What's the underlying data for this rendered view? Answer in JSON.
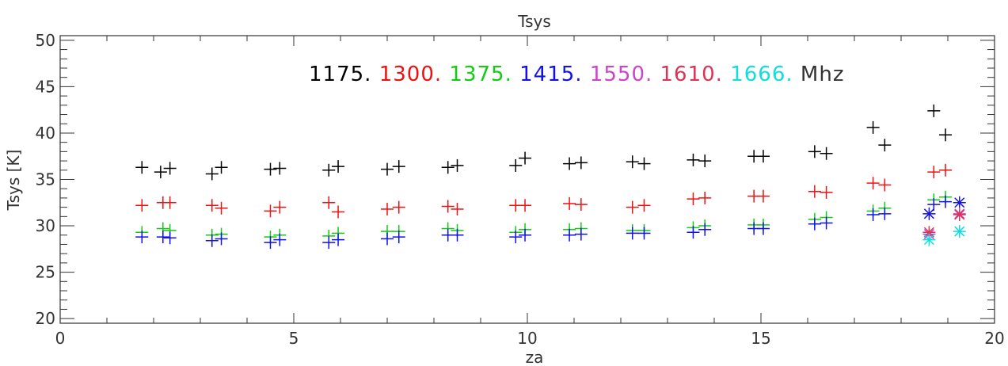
{
  "chart_data": {
    "type": "scatter",
    "title": "Tsys",
    "xlabel": "za",
    "ylabel": "Tsys [K]",
    "xlim": [
      0,
      20
    ],
    "ylim": [
      19.5,
      50.5
    ],
    "x_ticks": [
      0,
      5,
      10,
      15,
      20
    ],
    "x_tick_labels": [
      "0",
      "5",
      "10",
      "15",
      "20"
    ],
    "y_ticks": [
      20,
      25,
      30,
      35,
      40,
      45,
      50
    ],
    "y_tick_labels": [
      "20",
      "25",
      "30",
      "35",
      "40",
      "45",
      "50"
    ],
    "grid": false,
    "legend": {
      "placement": "top-center",
      "unit": "Mhz",
      "entries": [
        {
          "label": "1175.",
          "color": "#000000"
        },
        {
          "label": "1300.",
          "color": "#ee1111"
        },
        {
          "label": "1375.",
          "color": "#11cc11"
        },
        {
          "label": "1415.",
          "color": "#1111ee"
        },
        {
          "label": "1550.",
          "color": "#cc44cc"
        },
        {
          "label": "1610.",
          "color": "#dd3355"
        },
        {
          "label": "1666.",
          "color": "#11dddd"
        }
      ]
    },
    "series": [
      {
        "name": "1175.",
        "color": "#000000",
        "marker": "plus",
        "points": [
          [
            1.75,
            36.3
          ],
          [
            2.15,
            35.8
          ],
          [
            2.35,
            36.2
          ],
          [
            3.25,
            35.6
          ],
          [
            3.45,
            36.3
          ],
          [
            4.5,
            36.1
          ],
          [
            4.7,
            36.2
          ],
          [
            5.75,
            36.0
          ],
          [
            5.95,
            36.4
          ],
          [
            7.0,
            36.1
          ],
          [
            7.25,
            36.4
          ],
          [
            8.3,
            36.3
          ],
          [
            8.5,
            36.5
          ],
          [
            9.75,
            36.5
          ],
          [
            9.95,
            37.3
          ],
          [
            10.9,
            36.7
          ],
          [
            11.15,
            36.8
          ],
          [
            12.25,
            36.9
          ],
          [
            12.5,
            36.7
          ],
          [
            13.55,
            37.1
          ],
          [
            13.8,
            37.0
          ],
          [
            14.85,
            37.5
          ],
          [
            15.05,
            37.5
          ],
          [
            16.15,
            38.0
          ],
          [
            16.4,
            37.8
          ],
          [
            17.4,
            40.6
          ],
          [
            17.65,
            38.7
          ],
          [
            18.7,
            42.4
          ],
          [
            18.95,
            39.8
          ]
        ]
      },
      {
        "name": "1300.",
        "color": "#ee1111",
        "marker": "plus",
        "points": [
          [
            1.75,
            32.2
          ],
          [
            2.2,
            32.5
          ],
          [
            2.35,
            32.5
          ],
          [
            3.25,
            32.2
          ],
          [
            3.45,
            31.9
          ],
          [
            4.5,
            31.6
          ],
          [
            4.7,
            32.0
          ],
          [
            5.75,
            32.5
          ],
          [
            5.95,
            31.5
          ],
          [
            7.0,
            31.8
          ],
          [
            7.25,
            32.0
          ],
          [
            8.3,
            32.1
          ],
          [
            8.5,
            31.8
          ],
          [
            9.75,
            32.2
          ],
          [
            9.95,
            32.2
          ],
          [
            10.9,
            32.4
          ],
          [
            11.15,
            32.3
          ],
          [
            12.25,
            32.0
          ],
          [
            12.5,
            32.2
          ],
          [
            13.55,
            32.9
          ],
          [
            13.8,
            33.0
          ],
          [
            14.85,
            33.2
          ],
          [
            15.05,
            33.2
          ],
          [
            16.15,
            33.7
          ],
          [
            16.4,
            33.6
          ],
          [
            17.4,
            34.6
          ],
          [
            17.65,
            34.4
          ],
          [
            18.7,
            35.8
          ],
          [
            18.95,
            36.0
          ]
        ]
      },
      {
        "name": "1375.",
        "color": "#11cc11",
        "marker": "plus",
        "points": [
          [
            1.75,
            29.3
          ],
          [
            2.2,
            29.7
          ],
          [
            2.35,
            29.5
          ],
          [
            3.25,
            29.0
          ],
          [
            3.45,
            29.1
          ],
          [
            4.5,
            28.8
          ],
          [
            4.7,
            29.0
          ],
          [
            5.75,
            28.9
          ],
          [
            5.95,
            29.2
          ],
          [
            7.0,
            29.4
          ],
          [
            7.25,
            29.4
          ],
          [
            8.3,
            29.7
          ],
          [
            8.5,
            29.5
          ],
          [
            9.75,
            29.3
          ],
          [
            9.95,
            29.6
          ],
          [
            10.9,
            29.6
          ],
          [
            11.15,
            29.7
          ],
          [
            12.25,
            29.5
          ],
          [
            12.5,
            29.5
          ],
          [
            13.55,
            29.8
          ],
          [
            13.8,
            30.0
          ],
          [
            14.85,
            30.1
          ],
          [
            15.05,
            30.1
          ],
          [
            16.15,
            30.7
          ],
          [
            16.4,
            30.9
          ],
          [
            17.4,
            31.6
          ],
          [
            17.65,
            31.9
          ],
          [
            18.7,
            32.8
          ],
          [
            18.95,
            33.1
          ]
        ]
      },
      {
        "name": "1415.",
        "color": "#1111ee",
        "marker": "plus",
        "points": [
          [
            1.75,
            28.8
          ],
          [
            2.2,
            28.8
          ],
          [
            2.35,
            28.7
          ],
          [
            3.25,
            28.4
          ],
          [
            3.45,
            28.6
          ],
          [
            4.5,
            28.2
          ],
          [
            4.7,
            28.5
          ],
          [
            5.75,
            28.2
          ],
          [
            5.95,
            28.5
          ],
          [
            7.0,
            28.6
          ],
          [
            7.25,
            28.8
          ],
          [
            8.3,
            29.0
          ],
          [
            8.5,
            29.0
          ],
          [
            9.75,
            28.8
          ],
          [
            9.95,
            29.0
          ],
          [
            10.9,
            29.0
          ],
          [
            11.15,
            29.1
          ],
          [
            12.25,
            29.2
          ],
          [
            12.5,
            29.2
          ],
          [
            13.55,
            29.3
          ],
          [
            13.8,
            29.6
          ],
          [
            14.85,
            29.7
          ],
          [
            15.05,
            29.7
          ],
          [
            16.15,
            30.2
          ],
          [
            16.4,
            30.3
          ],
          [
            17.4,
            31.2
          ],
          [
            17.65,
            31.3
          ],
          [
            18.7,
            32.3
          ],
          [
            18.95,
            32.6
          ]
        ]
      },
      {
        "name": "1415.",
        "color": "#1111ee",
        "marker": "asterisk",
        "points": [
          [
            18.6,
            31.3
          ],
          [
            19.25,
            32.5
          ]
        ]
      },
      {
        "name": "1550.",
        "color": "#cc44cc",
        "marker": "asterisk",
        "points": [
          [
            18.6,
            29.1
          ],
          [
            19.25,
            31.3
          ]
        ]
      },
      {
        "name": "1610.",
        "color": "#dd3355",
        "marker": "asterisk",
        "points": [
          [
            18.6,
            29.3
          ],
          [
            19.25,
            31.2
          ]
        ]
      },
      {
        "name": "1666.",
        "color": "#11dddd",
        "marker": "asterisk",
        "points": [
          [
            18.6,
            28.5
          ],
          [
            19.25,
            29.4
          ]
        ]
      }
    ]
  }
}
